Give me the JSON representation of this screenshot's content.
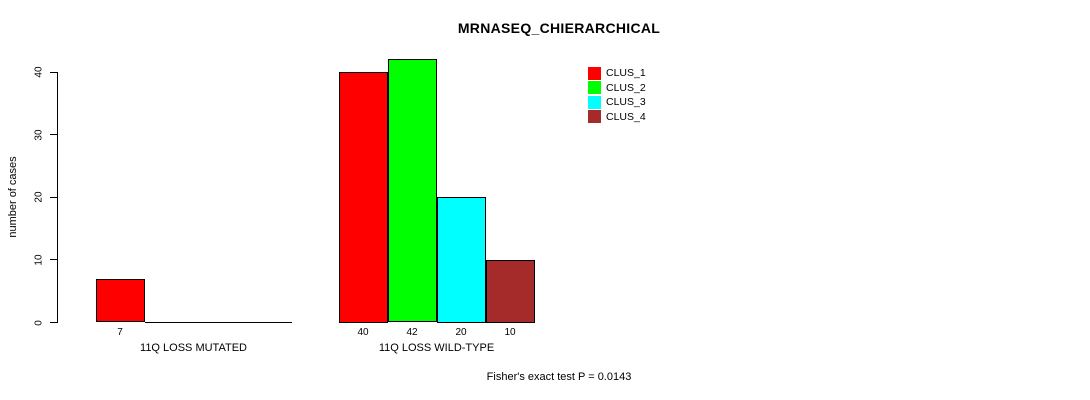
{
  "title": "MRNASEQ_CHIERARCHICAL",
  "footer": "Fisher's exact test P = 0.0143",
  "chart_data": {
    "type": "bar",
    "title": "MRNASEQ_CHIERARCHICAL",
    "xlabel": "",
    "ylabel": "number of cases",
    "categories": [
      "11Q LOSS MUTATED",
      "11Q LOSS WILD-TYPE"
    ],
    "series": [
      {
        "name": "CLUS_1",
        "color": "#ff0000",
        "values": [
          7,
          40
        ]
      },
      {
        "name": "CLUS_2",
        "color": "#00ff00",
        "values": [
          0,
          42
        ]
      },
      {
        "name": "CLUS_3",
        "color": "#00ffff",
        "values": [
          0,
          20
        ]
      },
      {
        "name": "CLUS_4",
        "color": "#a52a2a",
        "values": [
          0,
          10
        ]
      }
    ],
    "bar_value_labels": [
      [
        7,
        null,
        null,
        null
      ],
      [
        40,
        42,
        20,
        10
      ]
    ],
    "yticks": [
      0,
      10,
      20,
      30,
      40
    ],
    "ylim": [
      0,
      40
    ],
    "grid": false,
    "legend_position": "top-right",
    "annotation": "Fisher's exact test P = 0.0143",
    "axis_color": "#000000",
    "background_color": "#ffffff"
  }
}
